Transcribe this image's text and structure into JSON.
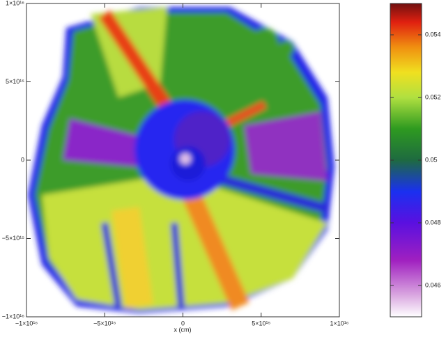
{
  "chart_data": {
    "type": "image",
    "xlabel": "x (cm)",
    "xlim": [
      -1e+16,
      1e+16
    ],
    "ylim": [
      -1e+16,
      1e+16
    ],
    "xticks": [
      {
        "value": -1e+16,
        "label": "−1×10¹⁶"
      },
      {
        "value": -5000000000000000.0,
        "label": "−5×10¹⁵"
      },
      0,
      {
        "value": 5000000000000000.0,
        "label": "5×10¹⁵"
      },
      {
        "value": 1e+16,
        "label": "1×10¹⁶"
      }
    ],
    "yticks": [
      {
        "value": -1e+16,
        "label": "−1×10¹⁶"
      },
      {
        "value": -5000000000000000.0,
        "label": "−5×10¹⁵"
      },
      0,
      {
        "value": 5000000000000000.0,
        "label": "5×10¹⁵"
      },
      {
        "value": 1e+16,
        "label": "1×10¹⁶"
      }
    ],
    "colorbar": {
      "clim": [
        0.045,
        0.055
      ],
      "ticks": [
        0.046,
        0.048,
        0.05,
        0.052,
        0.054
      ]
    }
  }
}
